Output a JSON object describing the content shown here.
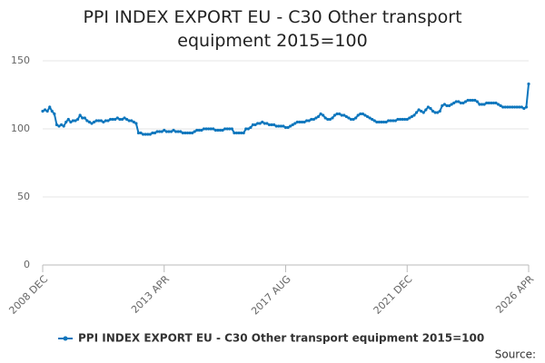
{
  "chart_data": {
    "type": "line",
    "title": "PPI INDEX EXPORT EU - C30 Other transport equipment 2015=100",
    "source": "Source:",
    "categories": [
      "2008 DEC",
      null,
      null,
      null,
      null,
      null,
      null,
      null,
      null,
      null,
      null,
      null,
      null,
      null,
      null,
      null,
      null,
      null,
      null,
      null,
      null,
      null,
      null,
      null,
      null,
      null,
      null,
      null,
      null,
      null,
      null,
      null,
      null,
      null,
      null,
      null,
      null,
      null,
      null,
      null,
      null,
      null,
      null,
      null,
      null,
      null,
      null,
      null,
      null,
      null,
      null,
      null,
      "2013 APR",
      null,
      null,
      null,
      null,
      null,
      null,
      null,
      null,
      null,
      null,
      null,
      null,
      null,
      null,
      null,
      null,
      null,
      null,
      null,
      null,
      null,
      null,
      null,
      null,
      null,
      null,
      null,
      null,
      null,
      null,
      null,
      null,
      null,
      null,
      null,
      null,
      null,
      null,
      null,
      null,
      null,
      null,
      null,
      null,
      null,
      null,
      null,
      null,
      null,
      null,
      null,
      "2017 AUG",
      null,
      null,
      null,
      null,
      null,
      null,
      null,
      null,
      null,
      null,
      null,
      null,
      null,
      null,
      null,
      null,
      null,
      null,
      null,
      null,
      null,
      null,
      null,
      null,
      null,
      null,
      null,
      null,
      null,
      null,
      null,
      null,
      null,
      null,
      null,
      null,
      null,
      null,
      null,
      null,
      null,
      null,
      null,
      null,
      null,
      null,
      null,
      null,
      null,
      null,
      null,
      "2021 DEC",
      null,
      null,
      null,
      null,
      null,
      null,
      null,
      null,
      null,
      null,
      null,
      null,
      null,
      null,
      null,
      null,
      null,
      null,
      null,
      null,
      null,
      null,
      null,
      null,
      null,
      null,
      null,
      null,
      null,
      null,
      null,
      null,
      null,
      null,
      null,
      null,
      null,
      null,
      null,
      null,
      null,
      null,
      null,
      null,
      null,
      null,
      null,
      null,
      null,
      null,
      null,
      "2026 APR"
    ],
    "series": [
      {
        "name": "PPI INDEX EXPORT EU - C30 Other transport equipment 2015=100",
        "color": "#0d76bd",
        "values": [
          113,
          114,
          113,
          116,
          113,
          111,
          103,
          102,
          103,
          102,
          105,
          107,
          105,
          106,
          106,
          107,
          110,
          108,
          108,
          106,
          105,
          104,
          105,
          106,
          106,
          106,
          105,
          106,
          106,
          107,
          107,
          107,
          108,
          107,
          107,
          108,
          107,
          106,
          106,
          105,
          104,
          97,
          97,
          96,
          96,
          96,
          96,
          97,
          97,
          98,
          98,
          98,
          99,
          98,
          98,
          98,
          99,
          98,
          98,
          98,
          97,
          97,
          97,
          97,
          97,
          98,
          99,
          99,
          99,
          100,
          100,
          100,
          100,
          100,
          99,
          99,
          99,
          99,
          100,
          100,
          100,
          100,
          97,
          97,
          97,
          97,
          97,
          100,
          100,
          101,
          103,
          103,
          104,
          104,
          105,
          104,
          104,
          103,
          103,
          103,
          102,
          102,
          102,
          102,
          101,
          101,
          102,
          103,
          104,
          105,
          105,
          105,
          105,
          106,
          106,
          107,
          107,
          108,
          109,
          111,
          110,
          108,
          107,
          107,
          108,
          110,
          111,
          111,
          110,
          110,
          109,
          108,
          107,
          107,
          108,
          110,
          111,
          111,
          110,
          109,
          108,
          107,
          106,
          105,
          105,
          105,
          105,
          105,
          106,
          106,
          106,
          106,
          107,
          107,
          107,
          107,
          107,
          108,
          109,
          110,
          112,
          114,
          113,
          112,
          114,
          116,
          115,
          113,
          112,
          112,
          113,
          117,
          118,
          117,
          117,
          118,
          119,
          120,
          120,
          119,
          119,
          120,
          121,
          121,
          121,
          121,
          120,
          118,
          118,
          118,
          119,
          119,
          119,
          119,
          119,
          118,
          117,
          116,
          116,
          116,
          116,
          116,
          116,
          116,
          116,
          116,
          115,
          116,
          133
        ]
      }
    ],
    "ylim": [
      0,
      150
    ],
    "yticks": [
      0,
      50,
      100,
      150
    ],
    "grid": true
  }
}
